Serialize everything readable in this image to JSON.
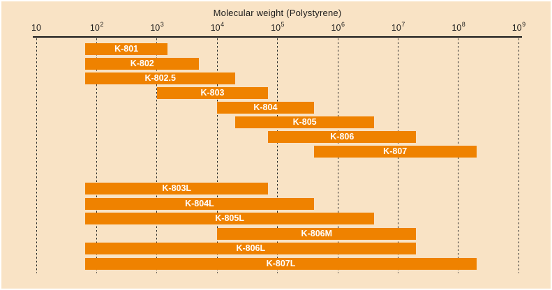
{
  "chart_data": {
    "type": "bar",
    "orientation": "horizontal",
    "title": "Molecular weight (Polystyrene)",
    "xlabel": "Molecular weight (Polystyrene)",
    "ylabel": "",
    "x_scale": "log10",
    "x_min": 10,
    "x_max": 1000000000,
    "x_tick_exponents": [
      1,
      2,
      3,
      4,
      5,
      6,
      7,
      8,
      9
    ],
    "x_tick_base": "10",
    "grid": "dashed-vertical",
    "legend": "none",
    "colors": {
      "bar": "#ef8200",
      "bar_label": "#ffffff",
      "background": "#f9e3c5",
      "axis": "#1a1a1a",
      "frame": "#ffffff"
    },
    "series": [
      {
        "name": "K-801",
        "start": 65,
        "end": 1500,
        "group": 0,
        "row": 0
      },
      {
        "name": "K-802",
        "start": 65,
        "end": 5000,
        "group": 0,
        "row": 1
      },
      {
        "name": "K-802.5",
        "start": 65,
        "end": 20000,
        "group": 0,
        "row": 2
      },
      {
        "name": "K-803",
        "start": 1000,
        "end": 70000,
        "group": 0,
        "row": 3
      },
      {
        "name": "K-804",
        "start": 10000,
        "end": 400000,
        "group": 0,
        "row": 4
      },
      {
        "name": "K-805",
        "start": 20000,
        "end": 4000000,
        "group": 0,
        "row": 5
      },
      {
        "name": "K-806",
        "start": 70000,
        "end": 20000000,
        "group": 0,
        "row": 6
      },
      {
        "name": "K-807",
        "start": 400000,
        "end": 200000000,
        "group": 0,
        "row": 7
      },
      {
        "name": "K-803L",
        "start": 65,
        "end": 70000,
        "group": 1,
        "row": 0
      },
      {
        "name": "K-804L",
        "start": 65,
        "end": 400000,
        "group": 1,
        "row": 1
      },
      {
        "name": "K-805L",
        "start": 65,
        "end": 4000000,
        "group": 1,
        "row": 2
      },
      {
        "name": "K-806M",
        "start": 10000,
        "end": 20000000,
        "group": 1,
        "row": 3
      },
      {
        "name": "K-806L",
        "start": 65,
        "end": 20000000,
        "group": 1,
        "row": 4
      },
      {
        "name": "K-807L",
        "start": 65,
        "end": 200000000,
        "group": 1,
        "row": 5
      }
    ]
  }
}
